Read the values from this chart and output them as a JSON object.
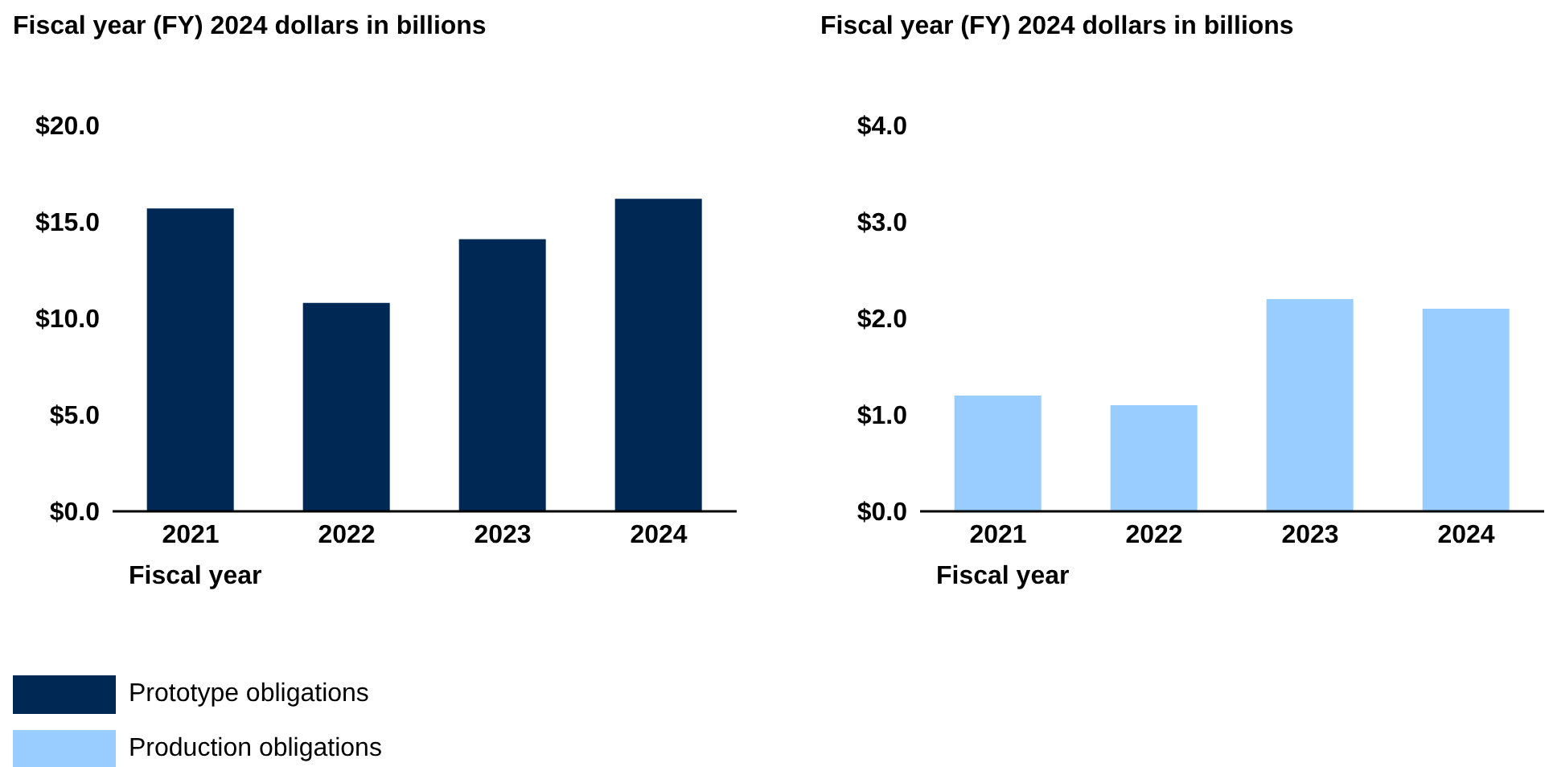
{
  "chart_data": [
    {
      "type": "bar",
      "ylabel": "Fiscal year (FY) 2024 dollars in billions",
      "xlabel": "Fiscal year",
      "categories": [
        "2021",
        "2022",
        "2023",
        "2024"
      ],
      "series": [
        {
          "name": "Prototype obligations",
          "color": "#002855",
          "values": [
            15.7,
            10.8,
            14.1,
            16.2
          ]
        }
      ],
      "ylim": [
        0,
        20
      ],
      "yticks": [
        {
          "value": 0,
          "label": "$0.0"
        },
        {
          "value": 5,
          "label": "$5.0"
        },
        {
          "value": 10,
          "label": "$10.0"
        },
        {
          "value": 15,
          "label": "$15.0"
        },
        {
          "value": 20,
          "label": "$20.0"
        }
      ],
      "grid": false,
      "legend": "bottom"
    },
    {
      "type": "bar",
      "ylabel": "Fiscal year (FY) 2024 dollars in billions",
      "xlabel": "Fiscal year",
      "categories": [
        "2021",
        "2022",
        "2023",
        "2024"
      ],
      "series": [
        {
          "name": "Production obligations",
          "color": "#99ccff",
          "values": [
            1.2,
            1.1,
            2.2,
            2.1
          ]
        }
      ],
      "ylim": [
        0,
        4
      ],
      "yticks": [
        {
          "value": 0,
          "label": "$0.0"
        },
        {
          "value": 1,
          "label": "$1.0"
        },
        {
          "value": 2,
          "label": "$2.0"
        },
        {
          "value": 3,
          "label": "$3.0"
        },
        {
          "value": 4,
          "label": "$4.0"
        }
      ],
      "grid": false,
      "legend": "bottom"
    }
  ]
}
